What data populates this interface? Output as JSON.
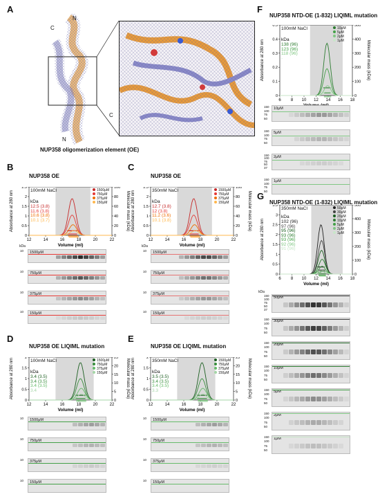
{
  "panels": {
    "A": {
      "letter": "A",
      "caption": "NUP358 oligomerization element (OE)",
      "labels": [
        "N",
        "C",
        "C",
        "N"
      ]
    },
    "B": {
      "letter": "B",
      "title": "NUP358 OE",
      "salt": "100mM NaCl",
      "kda_header": "kDa",
      "kda": [
        "12.5 (3.8)",
        "11.6 (3.8)",
        "10.6 (3.8)",
        "10.1 (3.7)"
      ],
      "legend": [
        "1500μM",
        "750μM",
        "375μM",
        "150μM"
      ],
      "gels": [
        "1500μM",
        "750μM",
        "375μM",
        "150μM"
      ],
      "gel_marker": "kDa",
      "gel_tick": "10"
    },
    "C": {
      "letter": "C",
      "title": "NUP358 OE",
      "salt": "350mM NaCl",
      "kda_header": "kDa",
      "kda": [
        "12.7 (3.8)",
        "12 (3.8)",
        "11.2 (3.6)",
        "10.1 (3.8)"
      ],
      "legend": [
        "1500μM",
        "750μM",
        "375μM",
        "150μM"
      ],
      "gels": [
        "1500μM",
        "750μM",
        "375μM",
        "150μM"
      ],
      "gel_marker": "kDa",
      "gel_tick": "10"
    },
    "D": {
      "letter": "D",
      "title": "NUP358 OE LIQIML mutation",
      "salt": "100mM NaCl",
      "kda_header": "kDa",
      "kda": [
        "3.4 (3.5)",
        "3.4 (3.5)",
        "3.4 (3.5)",
        "3.4"
      ],
      "legend": [
        "1500μM",
        "750μM",
        "375μM",
        "150μM"
      ],
      "gels": [
        "1500μM",
        "750μM",
        "375μM",
        "150μM"
      ],
      "gel_tick": "10"
    },
    "E": {
      "letter": "E",
      "title": "NUP358 OE LIQIML mutation",
      "salt": "350mM NaCl",
      "kda_header": "kDa",
      "kda": [
        "3.5 (3.5)",
        "3.4 (3.5)",
        "3.4 (3.5)",
        "3.3"
      ],
      "legend": [
        "1500μM",
        "750μM",
        "375μM",
        "150μM"
      ],
      "gels": [
        "1500μM",
        "750μM",
        "375μM",
        "150μM"
      ],
      "gel_tick": "10"
    },
    "F": {
      "letter": "F",
      "title": "NUP358 NTD-OE (1-832) LIQIML mutation",
      "salt": "100mM NaCl",
      "kda_header": "kDa",
      "kda": [
        "138 (96)",
        "123 (96)",
        "118 (96)",
        "-"
      ],
      "legend": [
        "10μM",
        "5μM",
        "2μM",
        "1μM"
      ],
      "gels": [
        "10μM",
        "5μM",
        "2μM",
        "1μM"
      ],
      "gel_ticks": [
        "150",
        "100",
        "75",
        "50"
      ],
      "gel_ticks_small": [
        "150",
        "100",
        "75",
        "50",
        "37"
      ]
    },
    "G": {
      "letter": "G",
      "title": "NUP358 NTD-OE (1-832) LIQIML mutation",
      "salt": "350mM NaCl",
      "kda_header": "kDa",
      "kda": [
        "102 (96)",
        "97 (96)",
        "95 (96)",
        "93 (96)",
        "93 (96)",
        "92 (96)",
        "91 (96)"
      ],
      "legend": [
        "50μM",
        "30μM",
        "20μM",
        "10μM",
        "5μM",
        "2μM",
        "1μM"
      ],
      "gels": [
        "50μM",
        "30μM",
        "20μM",
        "10μM",
        "5μM",
        "2μM",
        "1μM"
      ],
      "gel_marker": "kDa",
      "gel_ticks": [
        "150",
        "100",
        "75",
        "50"
      ],
      "gel_ticks_first": [
        "150",
        "100",
        "75",
        "50",
        "37"
      ]
    }
  },
  "axes": {
    "absorbance": "Absorbance at 280 nm",
    "mass": "Molecular mass (kDa)",
    "volume": "Volume (ml)"
  },
  "chart_data": [
    {
      "type": "line",
      "panel": "B",
      "xlim": [
        12,
        22
      ],
      "ylim_left": [
        0,
        2.5
      ],
      "ylim_right": [
        0,
        100
      ],
      "x_ticks": [
        "12",
        "14",
        "16",
        "18",
        "20",
        "22"
      ],
      "y_ticks": [
        "0",
        "0.5",
        "1",
        "1.5",
        "2",
        "2.5"
      ],
      "y2_ticks": [
        "0",
        "20",
        "40",
        "60",
        "80",
        "100"
      ],
      "series": [
        {
          "name": "1500μM",
          "peak_x": 17.2,
          "peak_y": 1.9,
          "color": "#c62828"
        },
        {
          "name": "750μM",
          "peak_x": 17.2,
          "peak_y": 1.05,
          "color": "#e53935"
        },
        {
          "name": "375μM",
          "peak_x": 17.3,
          "peak_y": 0.55,
          "color": "#ef6c00"
        },
        {
          "name": "150μM",
          "peak_x": 17.4,
          "peak_y": 0.25,
          "color": "#ffb74d"
        }
      ],
      "shaded_x": [
        15.2,
        19.4
      ]
    },
    {
      "type": "line",
      "panel": "C",
      "xlim": [
        12,
        22
      ],
      "ylim_left": [
        0,
        2.5
      ],
      "ylim_right": [
        0,
        100
      ],
      "x_ticks": [
        "12",
        "14",
        "16",
        "18",
        "20",
        "22"
      ],
      "y_ticks": [
        "0",
        "0.5",
        "1",
        "1.5",
        "2",
        "2.5"
      ],
      "y2_ticks": [
        "0",
        "20",
        "40",
        "60",
        "80",
        "100"
      ],
      "series": [
        {
          "name": "1500μM",
          "peak_x": 17.2,
          "peak_y": 1.9,
          "color": "#c62828"
        },
        {
          "name": "750μM",
          "peak_x": 17.2,
          "peak_y": 1.05,
          "color": "#e53935"
        },
        {
          "name": "375μM",
          "peak_x": 17.3,
          "peak_y": 0.55,
          "color": "#ef6c00"
        },
        {
          "name": "150μM",
          "peak_x": 17.4,
          "peak_y": 0.25,
          "color": "#ffb74d"
        }
      ],
      "shaded_x": [
        15.2,
        19.4
      ]
    },
    {
      "type": "line",
      "panel": "D",
      "xlim": [
        12,
        22
      ],
      "ylim_left": [
        0,
        2
      ],
      "ylim_right": [
        0,
        25
      ],
      "x_ticks": [
        "12",
        "14",
        "16",
        "18",
        "20",
        "22"
      ],
      "y_ticks": [
        "0",
        "0.5",
        "1",
        "1.5",
        "2"
      ],
      "y2_ticks": [
        "0",
        "5",
        "10",
        "15",
        "20",
        "25"
      ],
      "series": [
        {
          "name": "1500μM",
          "peak_x": 18.2,
          "peak_y": 1.75,
          "color": "#1b5e20"
        },
        {
          "name": "750μM",
          "peak_x": 18.2,
          "peak_y": 1.0,
          "color": "#388e3c"
        },
        {
          "name": "375μM",
          "peak_x": 18.3,
          "peak_y": 0.55,
          "color": "#66bb6a"
        },
        {
          "name": "150μM",
          "peak_x": 18.3,
          "peak_y": 0.28,
          "color": "#a5d6a7"
        }
      ],
      "shaded_x": [
        15.2,
        19.8
      ]
    },
    {
      "type": "line",
      "panel": "E",
      "xlim": [
        12,
        22
      ],
      "ylim_left": [
        0,
        2
      ],
      "ylim_right": [
        0,
        25
      ],
      "x_ticks": [
        "12",
        "14",
        "16",
        "18",
        "20",
        "22"
      ],
      "y_ticks": [
        "0",
        "0.5",
        "1",
        "1.5",
        "2"
      ],
      "y2_ticks": [
        "0",
        "5",
        "10",
        "15",
        "20",
        "25"
      ],
      "series": [
        {
          "name": "1500μM",
          "peak_x": 18.2,
          "peak_y": 1.75,
          "color": "#1b5e20"
        },
        {
          "name": "750μM",
          "peak_x": 18.2,
          "peak_y": 1.0,
          "color": "#388e3c"
        },
        {
          "name": "375μM",
          "peak_x": 18.3,
          "peak_y": 0.55,
          "color": "#66bb6a"
        },
        {
          "name": "150μM",
          "peak_x": 18.3,
          "peak_y": 0.28,
          "color": "#a5d6a7"
        }
      ],
      "shaded_x": [
        15.2,
        19.8
      ]
    },
    {
      "type": "line",
      "panel": "F",
      "xlim": [
        6,
        18
      ],
      "ylim_left": [
        0,
        0.5
      ],
      "ylim_right": [
        0,
        500
      ],
      "x_ticks": [
        "6",
        "8",
        "10",
        "12",
        "14",
        "16",
        "18"
      ],
      "y_ticks": [
        "0",
        "0.1",
        "0.2",
        "0.3",
        "0.4",
        "0.5"
      ],
      "y2_ticks": [
        "0",
        "100",
        "200",
        "300",
        "400",
        "500"
      ],
      "series": [
        {
          "name": "10μM",
          "peak_x": 13.8,
          "peak_y": 0.37,
          "color": "#2e7d32"
        },
        {
          "name": "5μM",
          "peak_x": 13.8,
          "peak_y": 0.19,
          "color": "#43a047"
        },
        {
          "name": "2μM",
          "peak_x": 13.9,
          "peak_y": 0.07,
          "color": "#81c784"
        },
        {
          "name": "1μM",
          "peak_x": 13.9,
          "peak_y": 0.035,
          "color": "#c8e6c9"
        }
      ],
      "shaded_x": [
        11,
        16.4
      ]
    },
    {
      "type": "line",
      "panel": "G",
      "xlim": [
        6,
        18
      ],
      "ylim_left": [
        0,
        3.5
      ],
      "ylim_right": [
        0,
        500
      ],
      "x_ticks": [
        "6",
        "8",
        "10",
        "12",
        "14",
        "16",
        "18"
      ],
      "y_ticks": [
        "0",
        "0.5",
        "1",
        "1.5",
        "2",
        "2.5",
        "3",
        "3.5"
      ],
      "y2_ticks": [
        "0",
        "100",
        "200",
        "300",
        "400",
        "500"
      ],
      "series": [
        {
          "name": "50μM",
          "peak_x": 12.8,
          "peak_y": 2.5,
          "color": "#212121"
        },
        {
          "name": "30μM",
          "peak_x": 12.9,
          "peak_y": 1.7,
          "color": "#424242"
        },
        {
          "name": "20μM",
          "peak_x": 12.9,
          "peak_y": 1.2,
          "color": "#1b5e20"
        },
        {
          "name": "10μM",
          "peak_x": 13.0,
          "peak_y": 0.75,
          "color": "#2e7d32"
        },
        {
          "name": "5μM",
          "peak_x": 13.0,
          "peak_y": 0.4,
          "color": "#43a047"
        },
        {
          "name": "2μM",
          "peak_x": 13.1,
          "peak_y": 0.18,
          "color": "#81c784"
        },
        {
          "name": "1μM",
          "peak_x": 13.1,
          "peak_y": 0.09,
          "color": "#c8e6c9"
        }
      ],
      "shaded_x": [
        11.2,
        16.4
      ]
    }
  ]
}
